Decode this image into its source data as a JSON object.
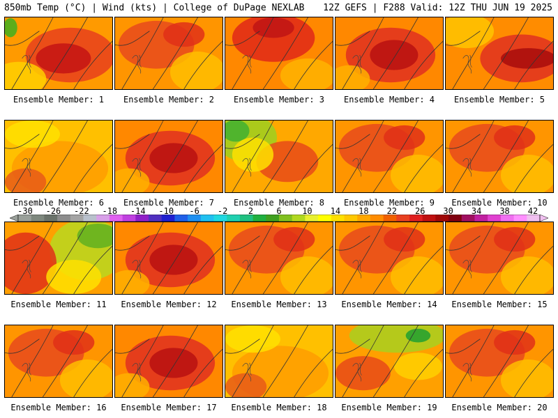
{
  "header": {
    "left": "850mb Temp (°C) | Wind (kts) | College of DuPage NEXLAB",
    "right": "12Z GEFS | F288 Valid: 12Z THU JUN 19 2025"
  },
  "panels": [
    {
      "caption": "Ensemble Member: 1",
      "style": "hot-ne"
    },
    {
      "caption": "Ensemble Member: 2",
      "style": "warm"
    },
    {
      "caption": "Ensemble Member: 3",
      "style": "hot-n"
    },
    {
      "caption": "Ensemble Member: 4",
      "style": "hot-center"
    },
    {
      "caption": "Ensemble Member: 5",
      "style": "hot-east"
    },
    {
      "caption": "Ensemble Member: 6",
      "style": "mild"
    },
    {
      "caption": "Ensemble Member: 7",
      "style": "hot-center"
    },
    {
      "caption": "Ensemble Member: 8",
      "style": "cool-nw"
    },
    {
      "caption": "Ensemble Member: 9",
      "style": "warm"
    },
    {
      "caption": "Ensemble Member: 10",
      "style": "warm"
    },
    {
      "caption": "Ensemble Member: 11",
      "style": "cool-ne"
    },
    {
      "caption": "Ensemble Member: 12",
      "style": "hot-center"
    },
    {
      "caption": "Ensemble Member: 13",
      "style": "warm"
    },
    {
      "caption": "Ensemble Member: 14",
      "style": "warm"
    },
    {
      "caption": "Ensemble Member: 15",
      "style": "warm"
    },
    {
      "caption": "Ensemble Member: 16",
      "style": "warm"
    },
    {
      "caption": "Ensemble Member: 17",
      "style": "hot-center"
    },
    {
      "caption": "Ensemble Member: 18",
      "style": "mild"
    },
    {
      "caption": "Ensemble Member: 19",
      "style": "cool-n"
    },
    {
      "caption": "Ensemble Member: 20",
      "style": "warm"
    }
  ],
  "scale": {
    "labels": [
      "-30",
      "-26",
      "-22",
      "-18",
      "-14",
      "-10",
      "-6",
      "-2",
      "2",
      "6",
      "10",
      "14",
      "18",
      "22",
      "26",
      "30",
      "34",
      "38",
      "42"
    ],
    "colors": [
      "#9aa09a",
      "#7e887e",
      "#6a726a",
      "#8c8c8c",
      "#a4a4a4",
      "#b8c0cc",
      "#d8a0e8",
      "#e060f0",
      "#c040e0",
      "#9020c8",
      "#5030c0",
      "#2020d0",
      "#2060e8",
      "#2090f0",
      "#20c0f0",
      "#20d8e0",
      "#20d0b0",
      "#20c080",
      "#20b040",
      "#40a020",
      "#80c020",
      "#b0d820",
      "#e8f030",
      "#ffff00",
      "#ffe000",
      "#ffc800",
      "#ffa800",
      "#ff8c00",
      "#f06000",
      "#e84020",
      "#e02020",
      "#c01010",
      "#a00808",
      "#800010",
      "#a01060",
      "#c020a0",
      "#e040d0",
      "#f070f0",
      "#ff90ff",
      "#f0c0f0"
    ]
  }
}
